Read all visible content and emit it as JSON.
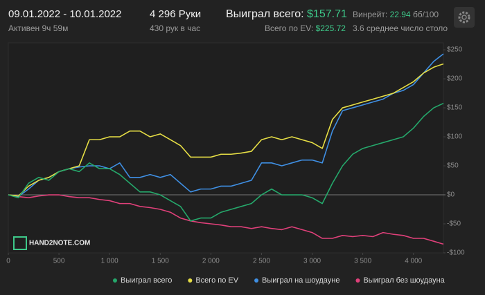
{
  "header": {
    "date_range": "09.01.2022 - 10.01.2022",
    "active": "Активен 9ч 59м",
    "hands": "4 296 Руки",
    "hands_per_hour": "430 рук в час",
    "won_label": "Выиграл всего:",
    "won_value": "$157.71",
    "ev_label": "Всего по EV:",
    "ev_value": "$225.72",
    "winrate_label": "Винрейт:",
    "winrate_value": "22.94",
    "winrate_unit": "бб/100",
    "tables": "3.6 среднее число столо"
  },
  "watermark": "HAND2NOTE.COM",
  "chart_data": {
    "type": "line",
    "x": [
      0,
      100,
      200,
      300,
      400,
      500,
      600,
      700,
      800,
      900,
      1000,
      1100,
      1200,
      1300,
      1400,
      1500,
      1600,
      1700,
      1800,
      1900,
      2000,
      2100,
      2200,
      2300,
      2400,
      2500,
      2600,
      2700,
      2800,
      2900,
      3000,
      3100,
      3200,
      3300,
      3400,
      3500,
      3600,
      3700,
      3800,
      3900,
      4000,
      4100,
      4200,
      4296
    ],
    "series": [
      {
        "name": "Выиграл всего",
        "color": "#25a86b",
        "values": [
          0,
          -5,
          20,
          30,
          25,
          40,
          45,
          40,
          55,
          45,
          45,
          35,
          20,
          5,
          5,
          0,
          -10,
          -20,
          -45,
          -40,
          -40,
          -30,
          -25,
          -20,
          -15,
          0,
          10,
          0,
          0,
          0,
          -5,
          -15,
          20,
          50,
          70,
          80,
          85,
          90,
          95,
          100,
          115,
          135,
          150,
          157.71
        ]
      },
      {
        "name": "Всего по EV",
        "color": "#e6de45",
        "values": [
          0,
          -2,
          15,
          25,
          30,
          40,
          45,
          50,
          95,
          95,
          100,
          100,
          110,
          110,
          100,
          105,
          95,
          85,
          65,
          65,
          65,
          70,
          70,
          72,
          75,
          95,
          100,
          95,
          100,
          95,
          90,
          80,
          130,
          150,
          155,
          160,
          165,
          170,
          175,
          185,
          195,
          210,
          220,
          225.72
        ]
      },
      {
        "name": "Выиграл на шоудауне",
        "color": "#3f8fe3",
        "values": [
          0,
          -3,
          10,
          25,
          30,
          40,
          45,
          48,
          50,
          50,
          45,
          55,
          30,
          30,
          35,
          30,
          35,
          20,
          5,
          10,
          10,
          15,
          15,
          20,
          25,
          55,
          55,
          50,
          55,
          60,
          60,
          55,
          110,
          145,
          150,
          155,
          160,
          165,
          175,
          180,
          190,
          210,
          230,
          243
        ]
      },
      {
        "name": "Выиграл без шоудауна",
        "color": "#e0407a",
        "values": [
          0,
          -3,
          -5,
          -2,
          0,
          0,
          -3,
          -5,
          -5,
          -8,
          -10,
          -15,
          -15,
          -20,
          -22,
          -25,
          -30,
          -40,
          -45,
          -48,
          -50,
          -52,
          -55,
          -55,
          -58,
          -55,
          -58,
          -60,
          -55,
          -60,
          -65,
          -75,
          -75,
          -70,
          -72,
          -70,
          -72,
          -65,
          -68,
          -70,
          -75,
          -75,
          -80,
          -85
        ]
      }
    ],
    "xlim": [
      0,
      4296
    ],
    "xticks": [
      0,
      500,
      {
        "value": 1000,
        "label": "1 000"
      },
      {
        "value": 1500,
        "label": "1 500"
      },
      {
        "value": 2000,
        "label": "2 000"
      },
      {
        "value": 2500,
        "label": "2 500"
      },
      {
        "value": 3000,
        "label": "3 000"
      },
      {
        "value": 3500,
        "label": "3 500"
      },
      {
        "value": 4000,
        "label": "4 000"
      }
    ],
    "ylim": [
      -100,
      262
    ],
    "yticks": [
      {
        "value": -100,
        "label": "-$100"
      },
      {
        "value": -50,
        "label": "-$50"
      },
      {
        "value": 0,
        "label": "$0"
      },
      {
        "value": 50,
        "label": "$50"
      },
      {
        "value": 100,
        "label": "$100"
      },
      {
        "value": 150,
        "label": "$150"
      },
      {
        "value": 200,
        "label": "$200"
      },
      {
        "value": 250,
        "label": "$250"
      }
    ],
    "legend": "bottom"
  }
}
